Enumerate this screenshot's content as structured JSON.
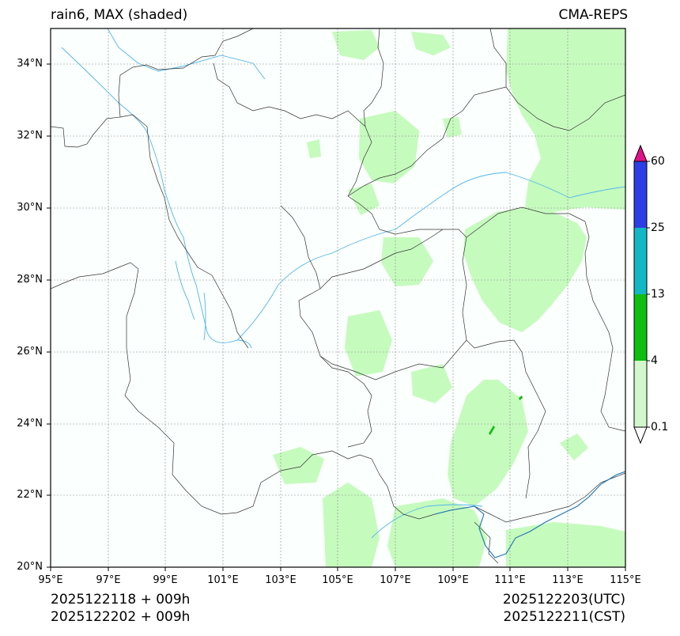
{
  "header": {
    "title_left": "rain6, MAX (shaded)",
    "title_right": "CMA-REPS"
  },
  "map": {
    "lon_range": [
      95,
      115
    ],
    "lat_range": [
      20,
      35
    ],
    "lon_ticks": [
      "95°E",
      "97°E",
      "99°E",
      "101°E",
      "103°E",
      "105°E",
      "107°E",
      "109°E",
      "111°E",
      "113°E",
      "115°E"
    ],
    "lat_ticks": [
      "34°N",
      "32°N",
      "30°N",
      "28°N",
      "26°N",
      "24°N",
      "22°N",
      "20°N"
    ],
    "background_color": "#fbfffd",
    "rain_color": "#c6fbbe",
    "border_color": "#333333",
    "river_color": "#4fb6e8"
  },
  "colorbar": {
    "levels": [
      "60",
      "25",
      "13",
      "4",
      "0.1"
    ],
    "colors": {
      "extend_max": "#e0138c",
      "band_25_60": "#2c3fe6",
      "band_13_25": "#12b8c3",
      "band_4_13": "#0ebe10",
      "band_01_4": "#d2f7cc",
      "extend_min": "#ffffff"
    }
  },
  "footer": {
    "init_utc": "2025122118  +  009h",
    "init_cst": "2025122202  +  009h",
    "valid_utc": "2025122203(UTC)",
    "valid_cst": "2025122211(CST)"
  }
}
